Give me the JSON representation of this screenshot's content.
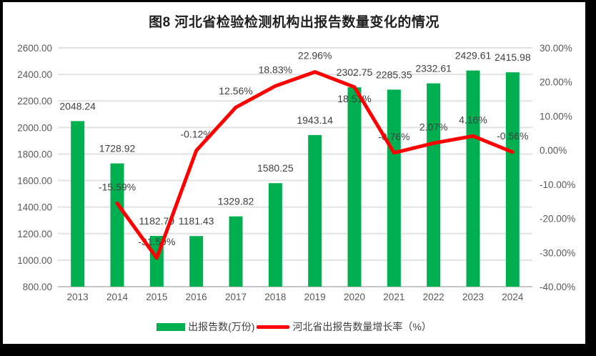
{
  "chart_data": {
    "type": "bar+line",
    "title": "图8 河北省检验检测机构出报告数量变化的情况",
    "categories": [
      "2013",
      "2014",
      "2015",
      "2016",
      "2017",
      "2018",
      "2019",
      "2020",
      "2021",
      "2022",
      "2023",
      "2024"
    ],
    "series": [
      {
        "name": "出报告数(万份)",
        "renderer": "bar",
        "axis": "left",
        "color": "#00B050",
        "values": [
          2048.24,
          1728.92,
          1182.79,
          1181.43,
          1329.82,
          1580.25,
          1943.14,
          2302.75,
          2285.35,
          2332.61,
          2429.61,
          2415.98
        ],
        "labels": [
          "2048.24",
          "1728.92",
          "1182.79",
          "1181.43",
          "1329.82",
          "1580.25",
          "1943.14",
          "2302.75",
          "2285.35",
          "2332.61",
          "2429.61",
          "2415.98"
        ]
      },
      {
        "name": "河北省出报告数量增长率（%）",
        "renderer": "line",
        "axis": "right",
        "color": "#FF0000",
        "values": [
          null,
          -15.59,
          -31.59,
          -0.12,
          12.56,
          18.83,
          22.96,
          18.51,
          -0.76,
          2.07,
          4.16,
          -0.56
        ],
        "labels": [
          null,
          "-15.59%",
          "-31.59%",
          "-0.12%",
          "12.56%",
          "18.83%",
          "22.96%",
          "18.51%",
          "-0.76%",
          "2.07%",
          "4.16%",
          "-0.56%"
        ]
      }
    ],
    "y_axis_left": {
      "min": 800,
      "max": 2600,
      "step": 200,
      "tick_labels": [
        "800.00",
        "1000.00",
        "1200.00",
        "1400.00",
        "1600.00",
        "1800.00",
        "2000.00",
        "2200.00",
        "2400.00",
        "2600.00"
      ]
    },
    "y_axis_right": {
      "min": -40,
      "max": 30,
      "step": 10,
      "tick_labels": [
        "-40.00%",
        "-30.00%",
        "-20.00%",
        "-10.00%",
        "0.00%",
        "10.00%",
        "20.00%",
        "30.00%"
      ]
    },
    "legend": [
      {
        "label": "出报告数(万份)",
        "marker": "bar",
        "color": "#00B050"
      },
      {
        "label": "河北省出报告数量增长率（%）",
        "marker": "line",
        "color": "#FF0000"
      }
    ],
    "grid": "horizontal",
    "legend_position": "bottom",
    "colors": {
      "grid": "#E2E2E2",
      "axis_line": "#C6C6C6",
      "tick_text": "#595959",
      "data_label_text": "#404040",
      "title_text": "#1F1F1F",
      "frame_border": "#000000",
      "background": "#FFFFFF"
    }
  }
}
